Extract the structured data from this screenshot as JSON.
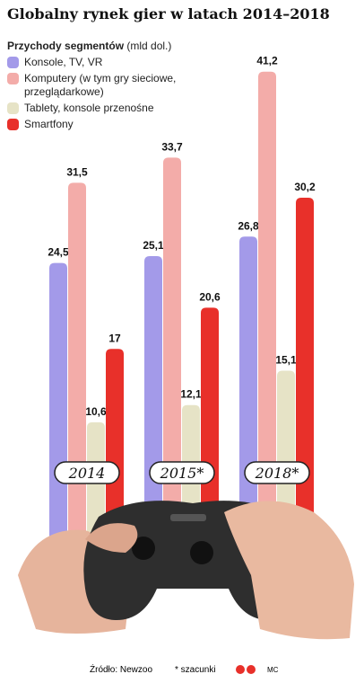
{
  "chart_data": {
    "type": "bar",
    "title": "Globalny rynek gier w latach 2014–2018",
    "legend_title": "Przychody segmentów",
    "unit": "(mld dol.)",
    "categories": [
      "2014",
      "2015*",
      "2018*"
    ],
    "series": [
      {
        "name": "Konsole, TV, VR",
        "color": "#a39ae9",
        "values": [
          24.5,
          25.1,
          26.8
        ],
        "value_labels": [
          "24,5",
          "25,1",
          "26,8"
        ]
      },
      {
        "name": "Komputery (w tym gry sieciowe, przeglądarkowe)",
        "color": "#f3aca9",
        "values": [
          31.5,
          33.7,
          41.2
        ],
        "value_labels": [
          "31,5",
          "33,7",
          "41,2"
        ]
      },
      {
        "name": "Tablety, konsole przenośne",
        "color": "#e6e3c6",
        "values": [
          10.6,
          12.1,
          15.1
        ],
        "value_labels": [
          "10,6",
          "12,1",
          "15,1"
        ]
      },
      {
        "name": "Smartfony",
        "color": "#e8302a",
        "values": [
          17,
          20.6,
          30.2
        ],
        "value_labels": [
          "17",
          "20,6",
          "30,2"
        ]
      }
    ],
    "source": "Źródło: Newzoo",
    "note": "* szacunki",
    "credit": "MC"
  }
}
